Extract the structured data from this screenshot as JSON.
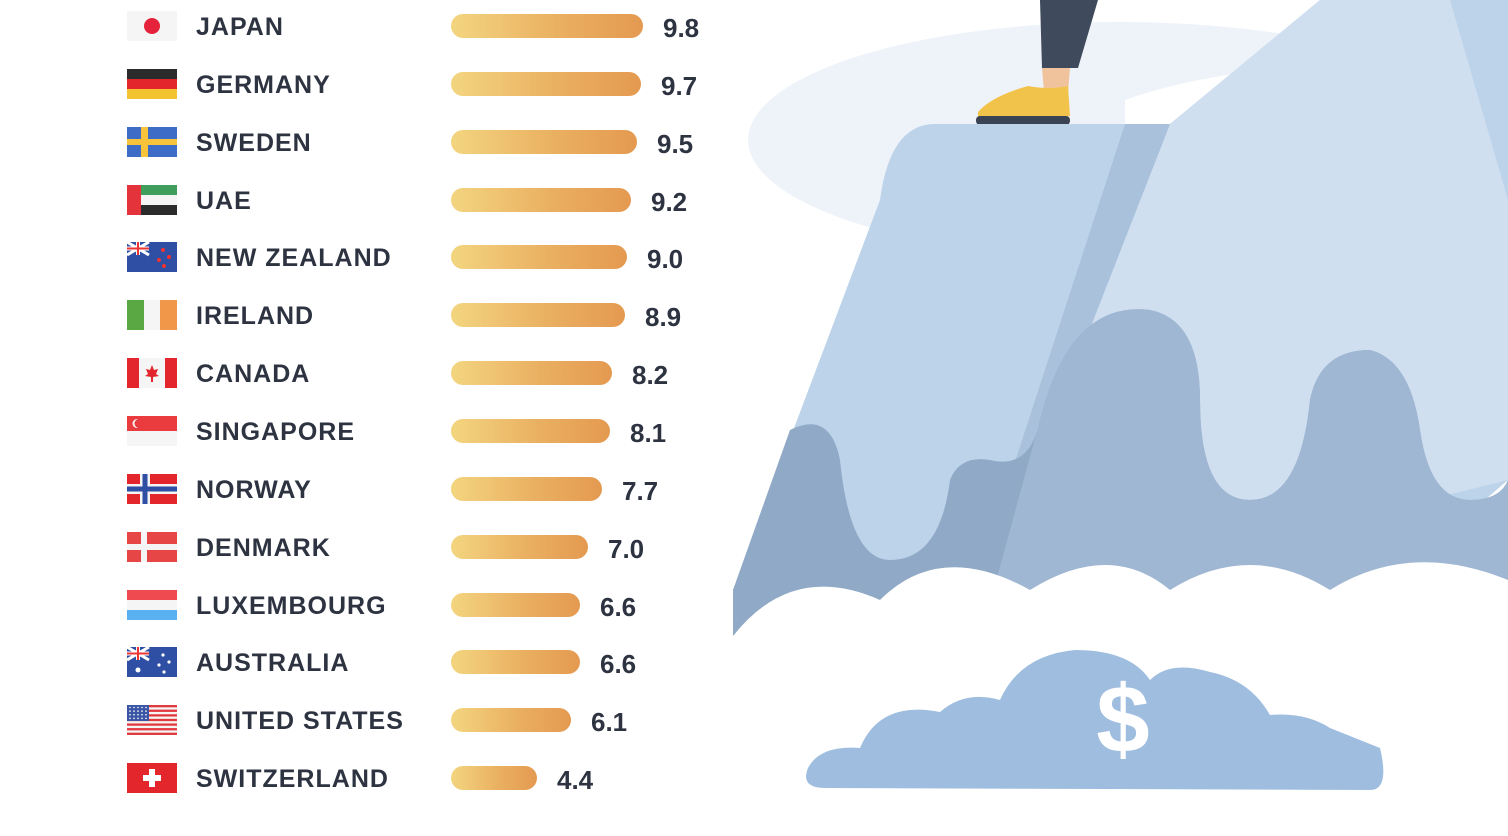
{
  "chart_data": {
    "type": "bar",
    "orientation": "horizontal",
    "categories": [
      "JAPAN",
      "GERMANY",
      "SWEDEN",
      "UAE",
      "NEW ZEALAND",
      "IRELAND",
      "CANADA",
      "SINGAPORE",
      "NORWAY",
      "DENMARK",
      "LUXEMBOURG",
      "AUSTRALIA",
      "UNITED STATES",
      "SWITZERLAND"
    ],
    "values": [
      9.8,
      9.7,
      9.5,
      9.2,
      9.0,
      8.9,
      8.2,
      8.1,
      7.7,
      7.0,
      6.6,
      6.6,
      6.1,
      4.4
    ],
    "value_labels": [
      "9.8",
      "9.7",
      "9.5",
      "9.2",
      "9.0",
      "8.9",
      "8.2",
      "8.1",
      "7.7",
      "7.0",
      "6.6",
      "6.6",
      "6.1",
      "4.4"
    ],
    "flags": [
      "japan-flag",
      "germany-flag",
      "sweden-flag",
      "uae-flag",
      "new-zealand-flag",
      "ireland-flag",
      "canada-flag",
      "singapore-flag",
      "norway-flag",
      "denmark-flag",
      "luxembourg-flag",
      "australia-flag",
      "united-states-flag",
      "switzerland-flag"
    ],
    "xlim": [
      0,
      10
    ],
    "grid": false,
    "colors": {
      "bar_start": "#f3d57f",
      "bar_end": "#e49a50",
      "text": "#2d3340"
    }
  },
  "illustration": {
    "dollar_sign": "$",
    "icons": [
      "mountain-peak",
      "hiker-foot",
      "cloud-with-dollar-sign"
    ]
  }
}
